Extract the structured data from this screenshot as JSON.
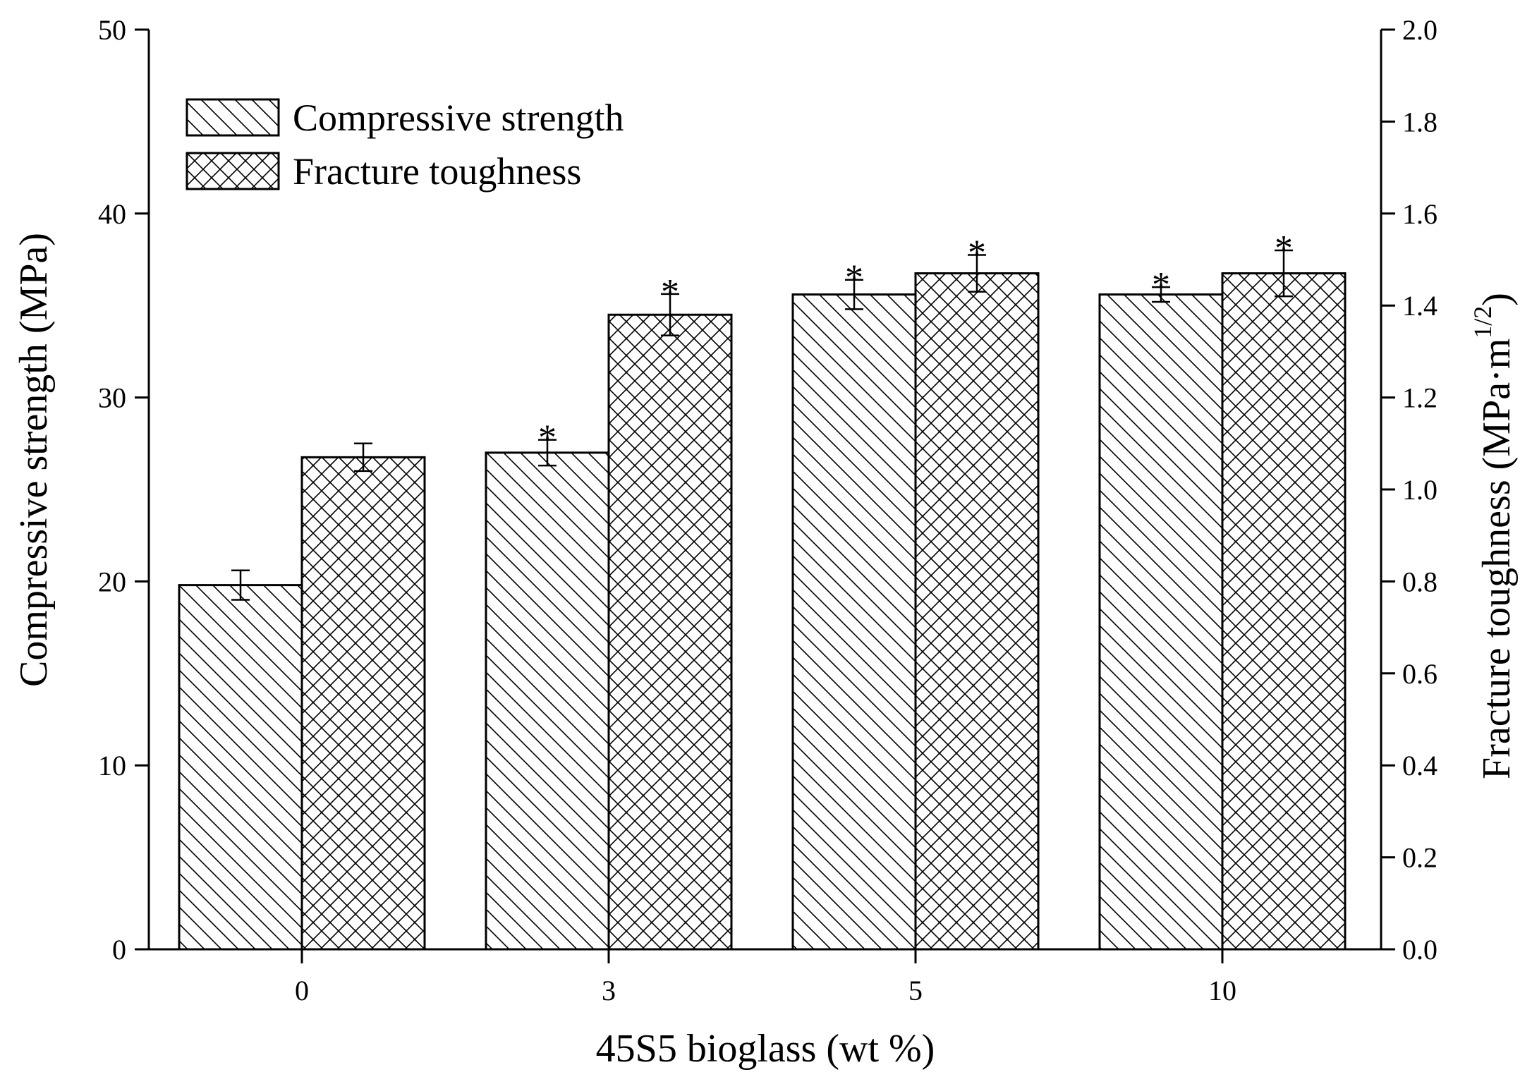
{
  "chart_data": {
    "type": "bar",
    "xlabel": "45S5 bioglass (wt %)",
    "ylabel_left": "Compressive strength (MPa)",
    "ylabel_right_main": "Fracture toughness (MPa·m",
    "ylabel_right_sup": "1/2",
    "ylabel_right_close": ")",
    "categories": [
      "0",
      "3",
      "5",
      "10"
    ],
    "ylim_left": [
      0,
      50
    ],
    "yticks_left": [
      "0",
      "10",
      "20",
      "30",
      "40",
      "50"
    ],
    "ylim_right": [
      0,
      2.0
    ],
    "yticks_right": [
      "0.0",
      "0.2",
      "0.4",
      "0.6",
      "0.8",
      "1.0",
      "1.2",
      "1.4",
      "1.6",
      "1.8",
      "2.0"
    ],
    "legend_position": "top-left",
    "grid": false,
    "significance_marker": "*",
    "series": [
      {
        "name": "Compressive strength",
        "axis": "left",
        "pattern": "diagonal",
        "values": [
          19.8,
          27.0,
          35.6,
          35.6
        ],
        "errors": [
          0.8,
          0.7,
          0.8,
          0.4
        ],
        "significant": [
          false,
          true,
          true,
          true
        ]
      },
      {
        "name": "Fracture toughness",
        "axis": "right",
        "pattern": "crosshatch",
        "values": [
          1.07,
          1.38,
          1.47,
          1.47
        ],
        "errors": [
          0.03,
          0.045,
          0.04,
          0.05
        ],
        "significant": [
          false,
          true,
          true,
          true
        ]
      }
    ]
  }
}
